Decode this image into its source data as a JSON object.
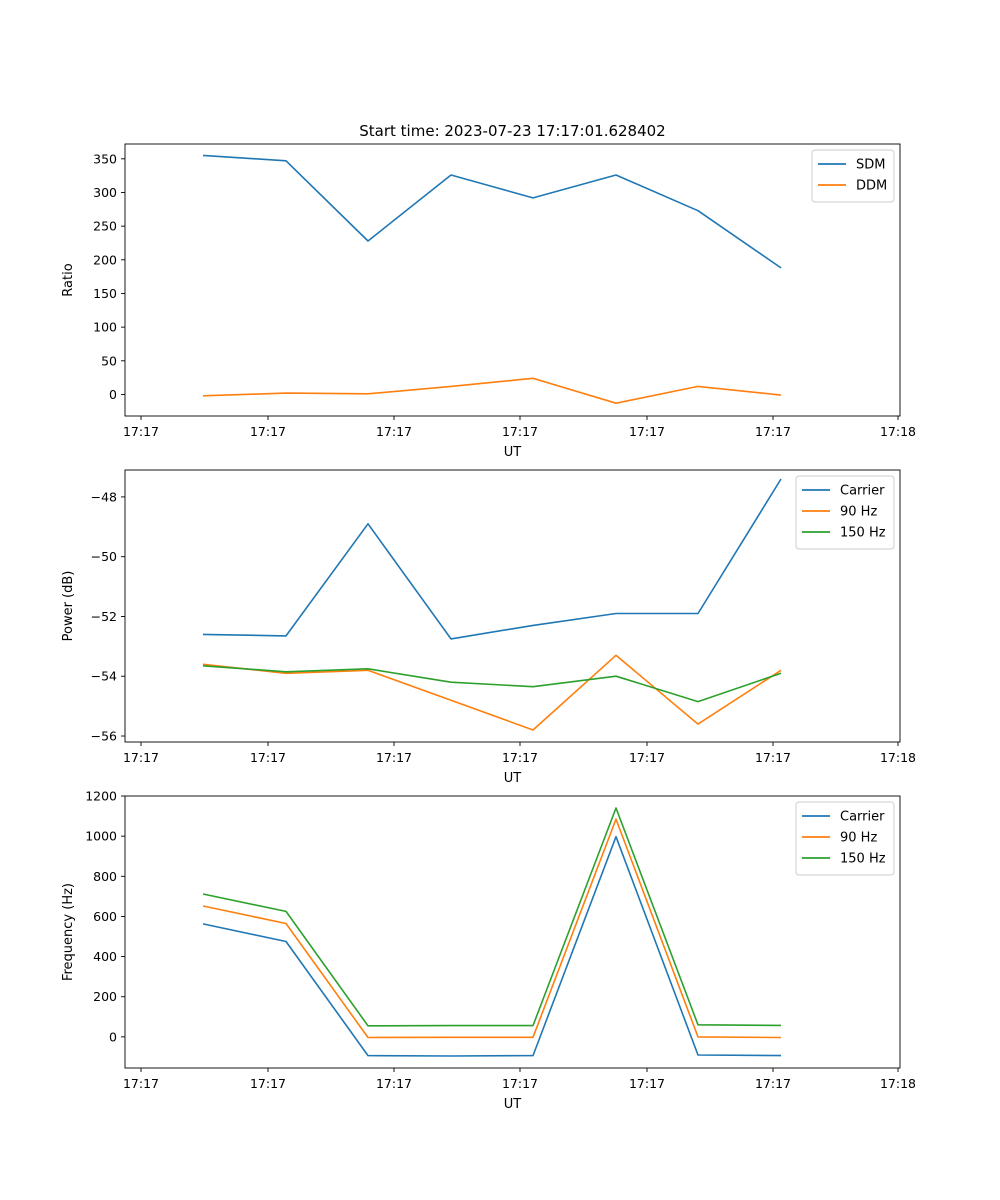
{
  "chart_data": [
    {
      "type": "line",
      "title": "Start time: 2023-07-23 17:17:01.628402",
      "xlabel": "UT",
      "ylabel": "Ratio",
      "x_tick_labels": [
        "17:17",
        "17:17",
        "17:17",
        "17:17",
        "17:17",
        "17:17",
        "17:18"
      ],
      "y_ticks": [
        0,
        50,
        100,
        150,
        200,
        250,
        300,
        350
      ],
      "ylim": [
        -32,
        372
      ],
      "grid": false,
      "legend_position": "top-right",
      "series": [
        {
          "name": "SDM",
          "color": "#1f77b4",
          "values": [
            355,
            347,
            228,
            326,
            292,
            326,
            273,
            188
          ]
        },
        {
          "name": "DDM",
          "color": "#ff7f0e",
          "values": [
            -2,
            2,
            1,
            12,
            24,
            -13,
            12,
            -1
          ]
        }
      ]
    },
    {
      "type": "line",
      "title": "",
      "xlabel": "UT",
      "ylabel": "Power (dB)",
      "x_tick_labels": [
        "17:17",
        "17:17",
        "17:17",
        "17:17",
        "17:17",
        "17:17",
        "17:18"
      ],
      "y_ticks": [
        -56,
        -54,
        -52,
        -50,
        -48
      ],
      "ylim": [
        -56.2,
        -47.1
      ],
      "grid": false,
      "legend_position": "top-right",
      "series": [
        {
          "name": "Carrier",
          "color": "#1f77b4",
          "values": [
            -52.6,
            -52.65,
            -48.9,
            -52.75,
            -52.3,
            -51.9,
            -51.9,
            -47.4
          ]
        },
        {
          "name": "90 Hz",
          "color": "#ff7f0e",
          "values": [
            -53.6,
            -53.9,
            -53.8,
            -54.8,
            -55.8,
            -53.3,
            -55.6,
            -53.8
          ]
        },
        {
          "name": "150 Hz",
          "color": "#2ca02c",
          "values": [
            -53.65,
            -53.85,
            -53.75,
            -54.2,
            -54.35,
            -54.0,
            -54.85,
            -53.9
          ]
        }
      ]
    },
    {
      "type": "line",
      "title": "",
      "xlabel": "UT",
      "ylabel": "Frequency (Hz)",
      "x_tick_labels": [
        "17:17",
        "17:17",
        "17:17",
        "17:17",
        "17:17",
        "17:17",
        "17:18"
      ],
      "y_ticks": [
        0,
        200,
        400,
        600,
        800,
        1000,
        1200
      ],
      "ylim": [
        -155,
        1200
      ],
      "grid": false,
      "legend_position": "top-right",
      "series": [
        {
          "name": "Carrier",
          "color": "#1f77b4",
          "values": [
            563,
            475,
            -93,
            -95,
            -93,
            997,
            -90,
            -93
          ]
        },
        {
          "name": "90 Hz",
          "color": "#ff7f0e",
          "values": [
            652,
            565,
            -3,
            -2,
            -2,
            1085,
            0,
            -3
          ]
        },
        {
          "name": "150 Hz",
          "color": "#2ca02c",
          "values": [
            712,
            625,
            55,
            56,
            56,
            1140,
            60,
            57
          ]
        }
      ]
    }
  ]
}
